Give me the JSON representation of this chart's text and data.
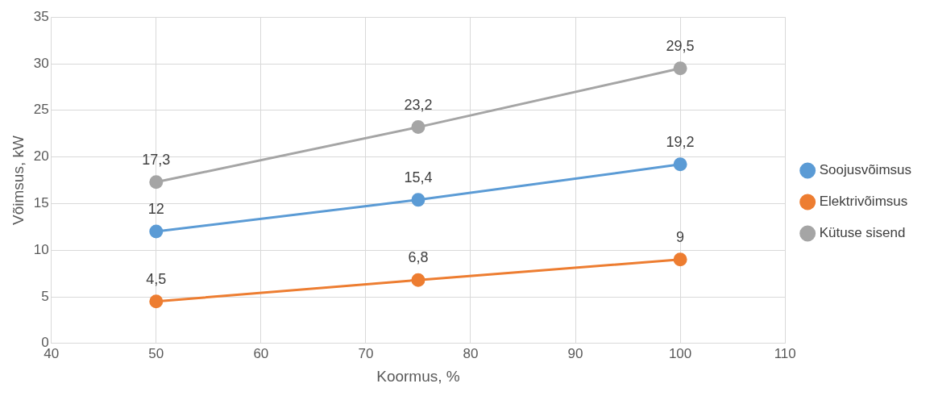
{
  "chart_data": {
    "type": "line",
    "xlabel": "Koormus, %",
    "ylabel": "Võimsus, kW",
    "x": [
      50,
      75,
      100
    ],
    "series": [
      {
        "name": "Soojusvõimsus",
        "color": "#5b9bd5",
        "values": [
          12,
          15.4,
          19.2
        ],
        "value_labels": [
          "12",
          "15,4",
          "19,2"
        ]
      },
      {
        "name": "Elektrivõimsus",
        "color": "#ed7d31",
        "values": [
          4.5,
          6.8,
          9
        ],
        "value_labels": [
          "4,5",
          "6,8",
          "9"
        ]
      },
      {
        "name": "Kütuse sisend",
        "color": "#a5a5a5",
        "values": [
          17.3,
          23.2,
          29.5
        ],
        "value_labels": [
          "17,3",
          "23,2",
          "29,5"
        ]
      }
    ],
    "xlim": [
      40,
      110
    ],
    "xticks": [
      40,
      50,
      60,
      70,
      80,
      90,
      100,
      110
    ],
    "ylim": [
      0,
      35
    ],
    "yticks": [
      0,
      5,
      10,
      15,
      20,
      25,
      30,
      35
    ],
    "grid": true,
    "legend": "right",
    "marker": "circle",
    "line_style": "solid"
  }
}
